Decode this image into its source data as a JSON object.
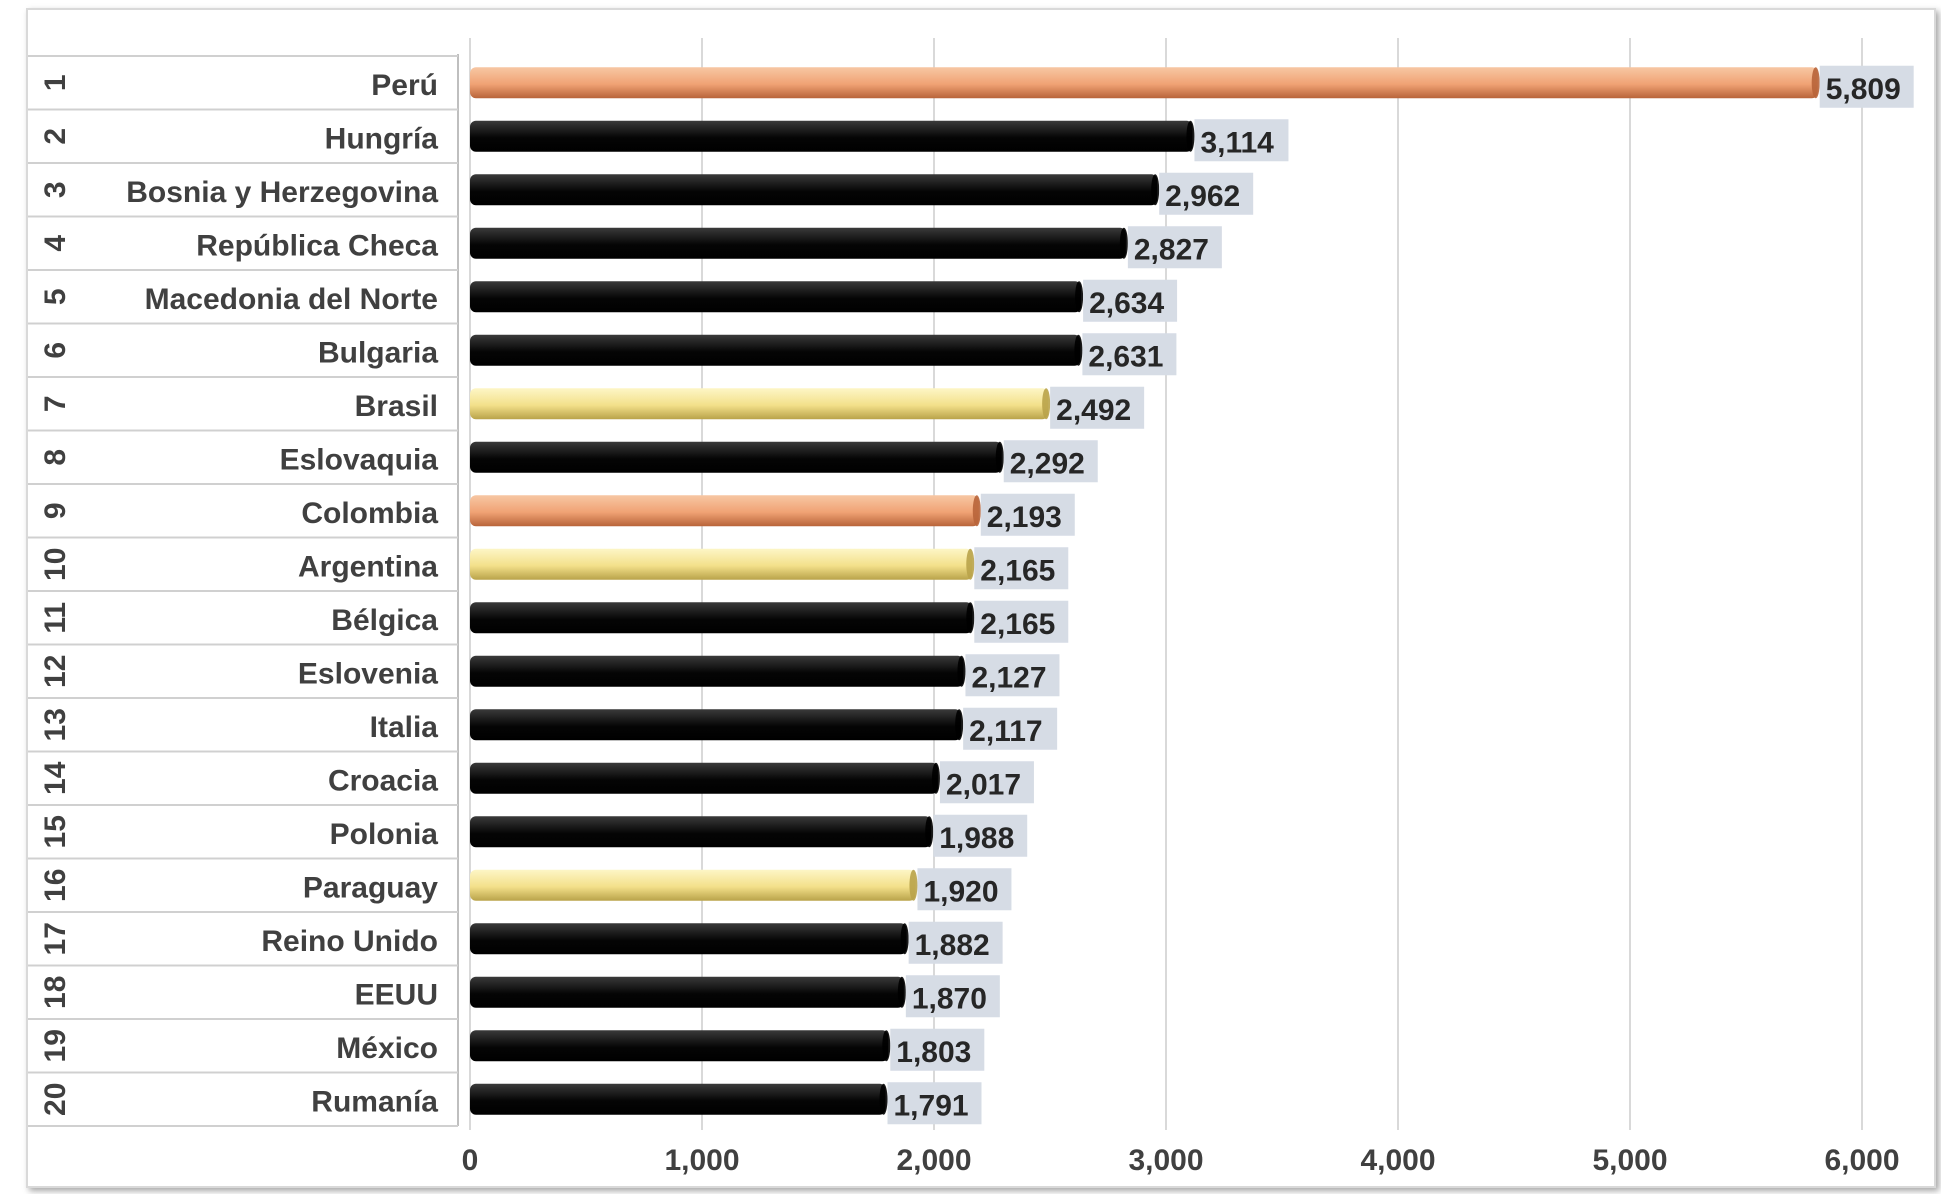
{
  "chart_data": {
    "type": "bar",
    "orientation": "horizontal",
    "categories": [
      "Perú",
      "Hungría",
      "Bosnia y  Herzegovina",
      "República Checa",
      "Macedonia del Norte",
      "Bulgaria",
      "Brasil",
      "Eslovaquia",
      "Colombia",
      "Argentina",
      "Bélgica",
      "Eslovenia",
      "Italia",
      "Croacia",
      "Polonia",
      "Paraguay",
      "Reino Unido",
      "EEUU",
      "México",
      "Rumanía"
    ],
    "ranks": [
      "1",
      "2",
      "3",
      "4",
      "5",
      "6",
      "7",
      "8",
      "9",
      "10",
      "11",
      "12",
      "13",
      "14",
      "15",
      "16",
      "17",
      "18",
      "19",
      "20"
    ],
    "values": [
      5809,
      3114,
      2962,
      2827,
      2634,
      2631,
      2492,
      2292,
      2193,
      2165,
      2165,
      2127,
      2117,
      2017,
      1988,
      1920,
      1882,
      1870,
      1803,
      1791
    ],
    "value_labels": [
      "5,809",
      "3,114",
      "2,962",
      "2,827",
      "2,634",
      "2,631",
      "2,492",
      "2,292",
      "2,193",
      "2,165",
      "2,165",
      "2,127",
      "2,117",
      "2,017",
      "1,988",
      "1,920",
      "1,882",
      "1,870",
      "1,803",
      "1,791"
    ],
    "bar_colors": [
      "orange",
      "black",
      "black",
      "black",
      "black",
      "black",
      "yellow",
      "black",
      "orange",
      "yellow",
      "black",
      "black",
      "black",
      "black",
      "black",
      "yellow",
      "black",
      "black",
      "black",
      "black"
    ],
    "palette": {
      "orange": {
        "light": "#f7c7a3",
        "mid": "#f0a274",
        "dark": "#b8643a"
      },
      "yellow": {
        "light": "#fdf6c6",
        "mid": "#f3e08a",
        "dark": "#b9a34a"
      },
      "black": {
        "light": "#3a3a3a",
        "mid": "#050505",
        "dark": "#000000"
      },
      "label_bg": "#d6dce5",
      "gridline": "#d9d9d9"
    },
    "xlim": [
      0,
      6000
    ],
    "x_ticks": [
      0,
      1000,
      2000,
      3000,
      4000,
      5000,
      6000
    ],
    "x_tick_labels": [
      "0",
      "1,000",
      "2,000",
      "3,000",
      "4,000",
      "5,000",
      "6,000"
    ],
    "grid": true,
    "title": "",
    "xlabel": "",
    "ylabel": ""
  }
}
